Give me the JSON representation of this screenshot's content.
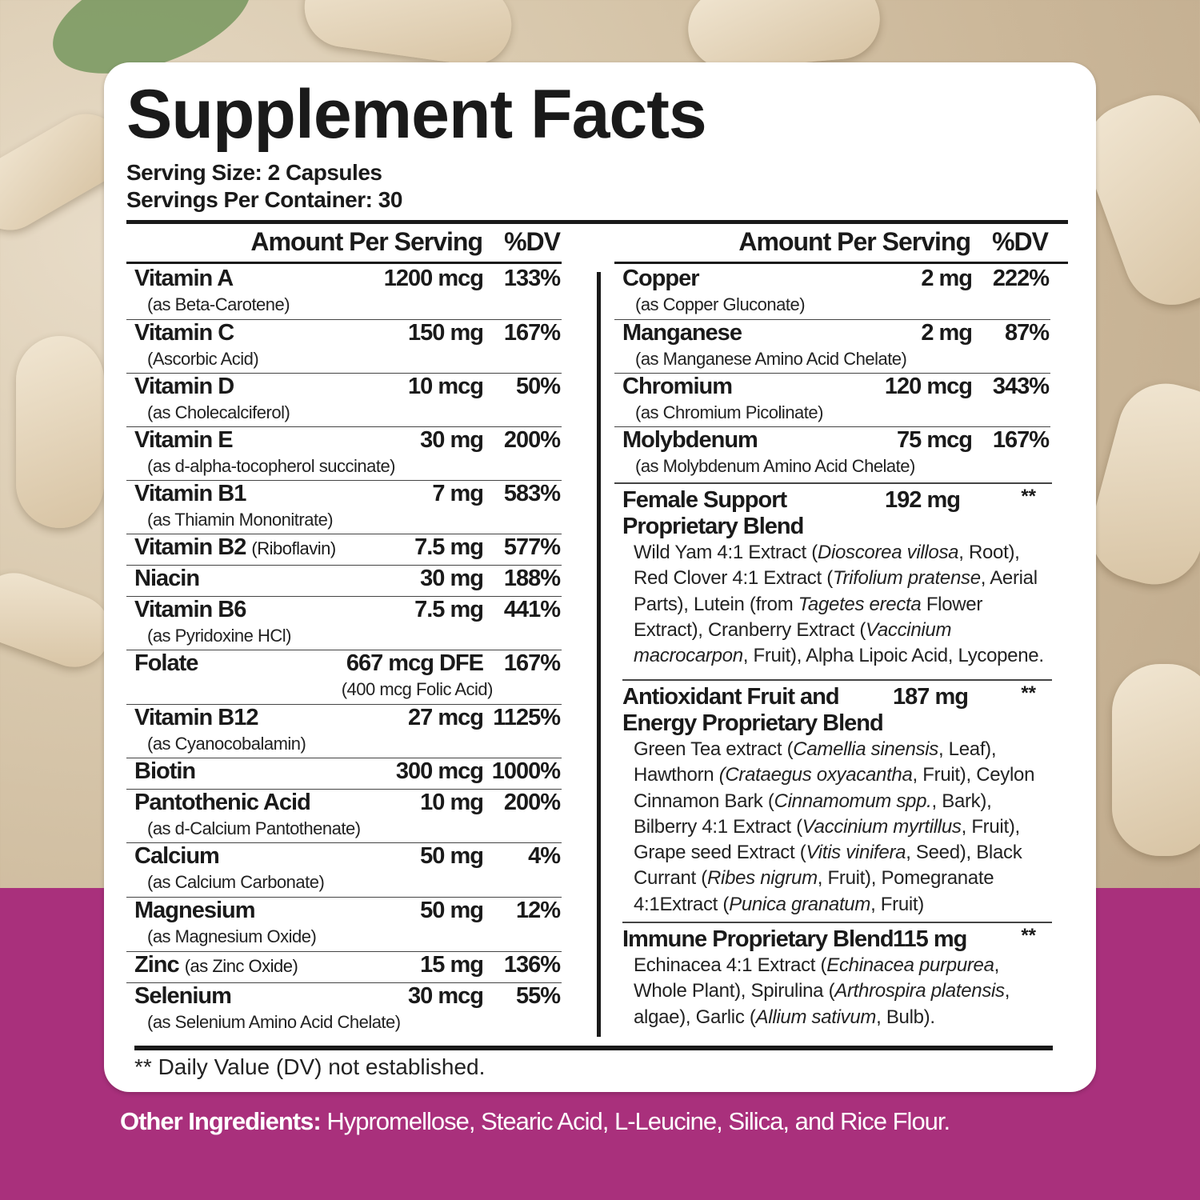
{
  "colors": {
    "accent": "#a9307c",
    "text": "#1a1a1a",
    "card": "#ffffff"
  },
  "title": "Supplement Facts",
  "serving_size": "Serving Size: 2 Capsules",
  "servings_per_container": "Servings Per Container: 30",
  "headers": {
    "amount": "Amount Per Serving",
    "dv": "%DV"
  },
  "left_rows": [
    {
      "name": "Vitamin A",
      "note": "(as Beta-Carotene)",
      "amount": "1200 mcg",
      "dv": "133%"
    },
    {
      "name": "Vitamin C",
      "note": "(Ascorbic Acid)",
      "amount": "150 mg",
      "dv": "167%"
    },
    {
      "name": "Vitamin D",
      "note": "(as Cholecalciferol)",
      "amount": "10 mcg",
      "dv": "50%"
    },
    {
      "name": "Vitamin E",
      "note": "(as d-alpha-tocopherol succinate)",
      "amount": "30 mg",
      "dv": "200%"
    },
    {
      "name": "Vitamin B1",
      "note": "(as Thiamin Mononitrate)",
      "amount": "7 mg",
      "dv": "583%"
    },
    {
      "name": "Vitamin B2",
      "inline": "(Riboflavin)",
      "amount": "7.5 mg",
      "dv": "577%"
    },
    {
      "name": "Niacin",
      "amount": "30 mg",
      "dv": "188%"
    },
    {
      "name": "Vitamin B6",
      "note": "(as Pyridoxine HCl)",
      "amount": "7.5 mg",
      "dv": "441%"
    },
    {
      "name": "Folate",
      "amount": "667 mcg DFE",
      "amount_note": "(400 mcg Folic Acid)",
      "dv": "167%"
    },
    {
      "name": "Vitamin B12",
      "note": "(as Cyanocobalamin)",
      "amount": "27 mcg",
      "dv": "1125%"
    },
    {
      "name": "Biotin",
      "amount": "300 mcg",
      "dv": "1000%"
    },
    {
      "name": "Pantothenic Acid",
      "note": "(as d-Calcium Pantothenate)",
      "amount": "10 mg",
      "dv": "200%"
    },
    {
      "name": "Calcium",
      "note": "(as Calcium Carbonate)",
      "amount": "50 mg",
      "dv": "4%"
    },
    {
      "name": "Magnesium",
      "note": "(as Magnesium Oxide)",
      "amount": "50 mg",
      "dv": "12%"
    },
    {
      "name": "Zinc",
      "inline": "(as Zinc Oxide)",
      "amount": "15 mg",
      "dv": "136%"
    },
    {
      "name": "Selenium",
      "note": "(as Selenium Amino Acid Chelate)",
      "amount": "30 mcg",
      "dv": "55%"
    }
  ],
  "right_rows": [
    {
      "name": "Copper",
      "note": "(as Copper Gluconate)",
      "amount": "2 mg",
      "dv": "222%"
    },
    {
      "name": "Manganese",
      "note": "(as Manganese Amino Acid Chelate)",
      "amount": "2 mg",
      "dv": "87%"
    },
    {
      "name": "Chromium",
      "note": "(as Chromium Picolinate)",
      "amount": "120 mcg",
      "dv": "343%"
    },
    {
      "name": "Molybdenum",
      "note": "(as Molybdenum Amino Acid Chelate)",
      "amount": "75 mcg",
      "dv": "167%"
    }
  ],
  "blends": [
    {
      "name": "Female Support Proprietary Blend",
      "amount": "192 mg",
      "dv": "**",
      "text": [
        {
          "t": "Wild Yam 4:1 Extract ("
        },
        {
          "t": "Dioscorea villosa",
          "i": true
        },
        {
          "t": ", Root), Red Clover 4:1 Extract ("
        },
        {
          "t": "Trifolium pratense",
          "i": true
        },
        {
          "t": ", Aerial Parts), Lutein (from "
        },
        {
          "t": "Tagetes erecta",
          "i": true
        },
        {
          "t": " Flower Extract), Cranberry Extract ("
        },
        {
          "t": "Vaccinium macrocarpon",
          "i": true
        },
        {
          "t": ", Fruit), Alpha Lipoic Acid, Lycopene."
        }
      ]
    },
    {
      "name": "Antioxidant Fruit and Energy Proprietary Blend",
      "amount": "187 mg",
      "dv": "**",
      "text": [
        {
          "t": "Green Tea extract ("
        },
        {
          "t": "Camellia sinensis",
          "i": true
        },
        {
          "t": ", Leaf), Hawthorn "
        },
        {
          "t": "(Crataegus oxyacantha",
          "i": true
        },
        {
          "t": ", Fruit), Ceylon Cinnamon Bark ("
        },
        {
          "t": "Cinnamomum spp.",
          "i": true
        },
        {
          "t": ", Bark), Bilberry 4:1 Extract ("
        },
        {
          "t": "Vaccinium myrtillus",
          "i": true
        },
        {
          "t": ", Fruit), Grape seed Extract ("
        },
        {
          "t": "Vitis vinifera",
          "i": true
        },
        {
          "t": ", Seed), Black Currant ("
        },
        {
          "t": "Ribes nigrum",
          "i": true
        },
        {
          "t": ", Fruit), Pomegranate 4:1Extract ("
        },
        {
          "t": "Punica granatum",
          "i": true
        },
        {
          "t": ", Fruit)"
        }
      ]
    },
    {
      "name": "Immune Proprietary Blend",
      "amount": "115 mg",
      "dv": "**",
      "text": [
        {
          "t": "Echinacea 4:1 Extract ("
        },
        {
          "t": "Echinacea purpurea",
          "i": true
        },
        {
          "t": ", Whole Plant), Spirulina ("
        },
        {
          "t": "Arthrospira platensis",
          "i": true
        },
        {
          "t": ", algae), Garlic ("
        },
        {
          "t": "Allium sativum",
          "i": true
        },
        {
          "t": ", Bulb)."
        }
      ]
    }
  ],
  "footnote": "** Daily Value (DV) not established.",
  "other_ingredients": {
    "label": "Other Ingredients:",
    "value": " Hypromellose, Stearic Acid, L-Leucine, Silica, and Rice Flour."
  }
}
